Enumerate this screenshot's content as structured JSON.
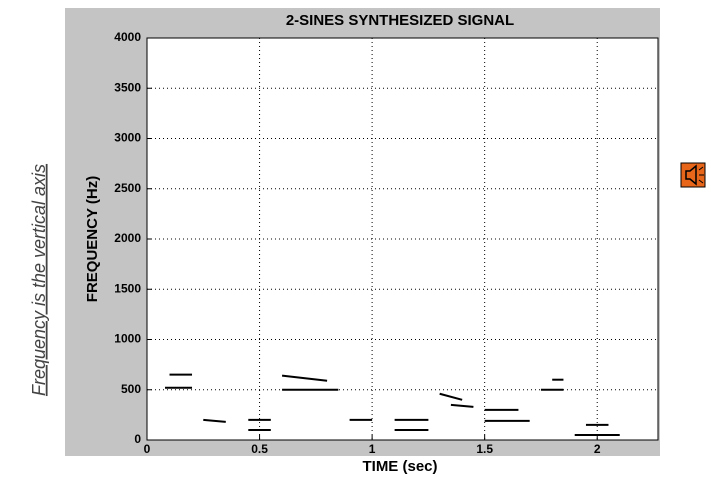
{
  "chart_data": {
    "type": "spectrogram",
    "title": "2-SINES SYNTHESIZED SIGNAL",
    "x_label": "TIME (sec)",
    "y_label": "FREQUENCY (Hz)",
    "annotation": "Frequency is the vertical axis",
    "xlim": [
      0,
      2.27
    ],
    "ylim": [
      0,
      4000
    ],
    "xticks": [
      0,
      0.5,
      1,
      1.5,
      2
    ],
    "yticks": [
      0,
      500,
      1000,
      1500,
      2000,
      2500,
      3000,
      3500,
      4000
    ],
    "grid": true,
    "color": "#000000",
    "segments": [
      {
        "x": [
          0.1,
          0.2
        ],
        "y": [
          650,
          650
        ]
      },
      {
        "x": [
          0.08,
          0.2
        ],
        "y": [
          520,
          520
        ]
      },
      {
        "x": [
          0.25,
          0.35
        ],
        "y": [
          200,
          180
        ]
      },
      {
        "x": [
          0.45,
          0.55
        ],
        "y": [
          200,
          200
        ]
      },
      {
        "x": [
          0.45,
          0.55
        ],
        "y": [
          100,
          100
        ]
      },
      {
        "x": [
          0.6,
          0.8
        ],
        "y": [
          640,
          590
        ]
      },
      {
        "x": [
          0.6,
          0.85
        ],
        "y": [
          500,
          500
        ]
      },
      {
        "x": [
          0.9,
          1.0
        ],
        "y": [
          200,
          200
        ]
      },
      {
        "x": [
          1.1,
          1.25
        ],
        "y": [
          200,
          200
        ]
      },
      {
        "x": [
          1.1,
          1.25
        ],
        "y": [
          100,
          100
        ]
      },
      {
        "x": [
          1.3,
          1.4
        ],
        "y": [
          460,
          400
        ]
      },
      {
        "x": [
          1.35,
          1.45
        ],
        "y": [
          350,
          330
        ]
      },
      {
        "x": [
          1.5,
          1.65
        ],
        "y": [
          300,
          300
        ]
      },
      {
        "x": [
          1.5,
          1.7
        ],
        "y": [
          190,
          190
        ]
      },
      {
        "x": [
          1.75,
          1.85
        ],
        "y": [
          500,
          500
        ]
      },
      {
        "x": [
          1.8,
          1.85
        ],
        "y": [
          600,
          600
        ]
      },
      {
        "x": [
          1.95,
          2.05
        ],
        "y": [
          150,
          150
        ]
      },
      {
        "x": [
          1.9,
          2.1
        ],
        "y": [
          50,
          50
        ]
      }
    ]
  }
}
